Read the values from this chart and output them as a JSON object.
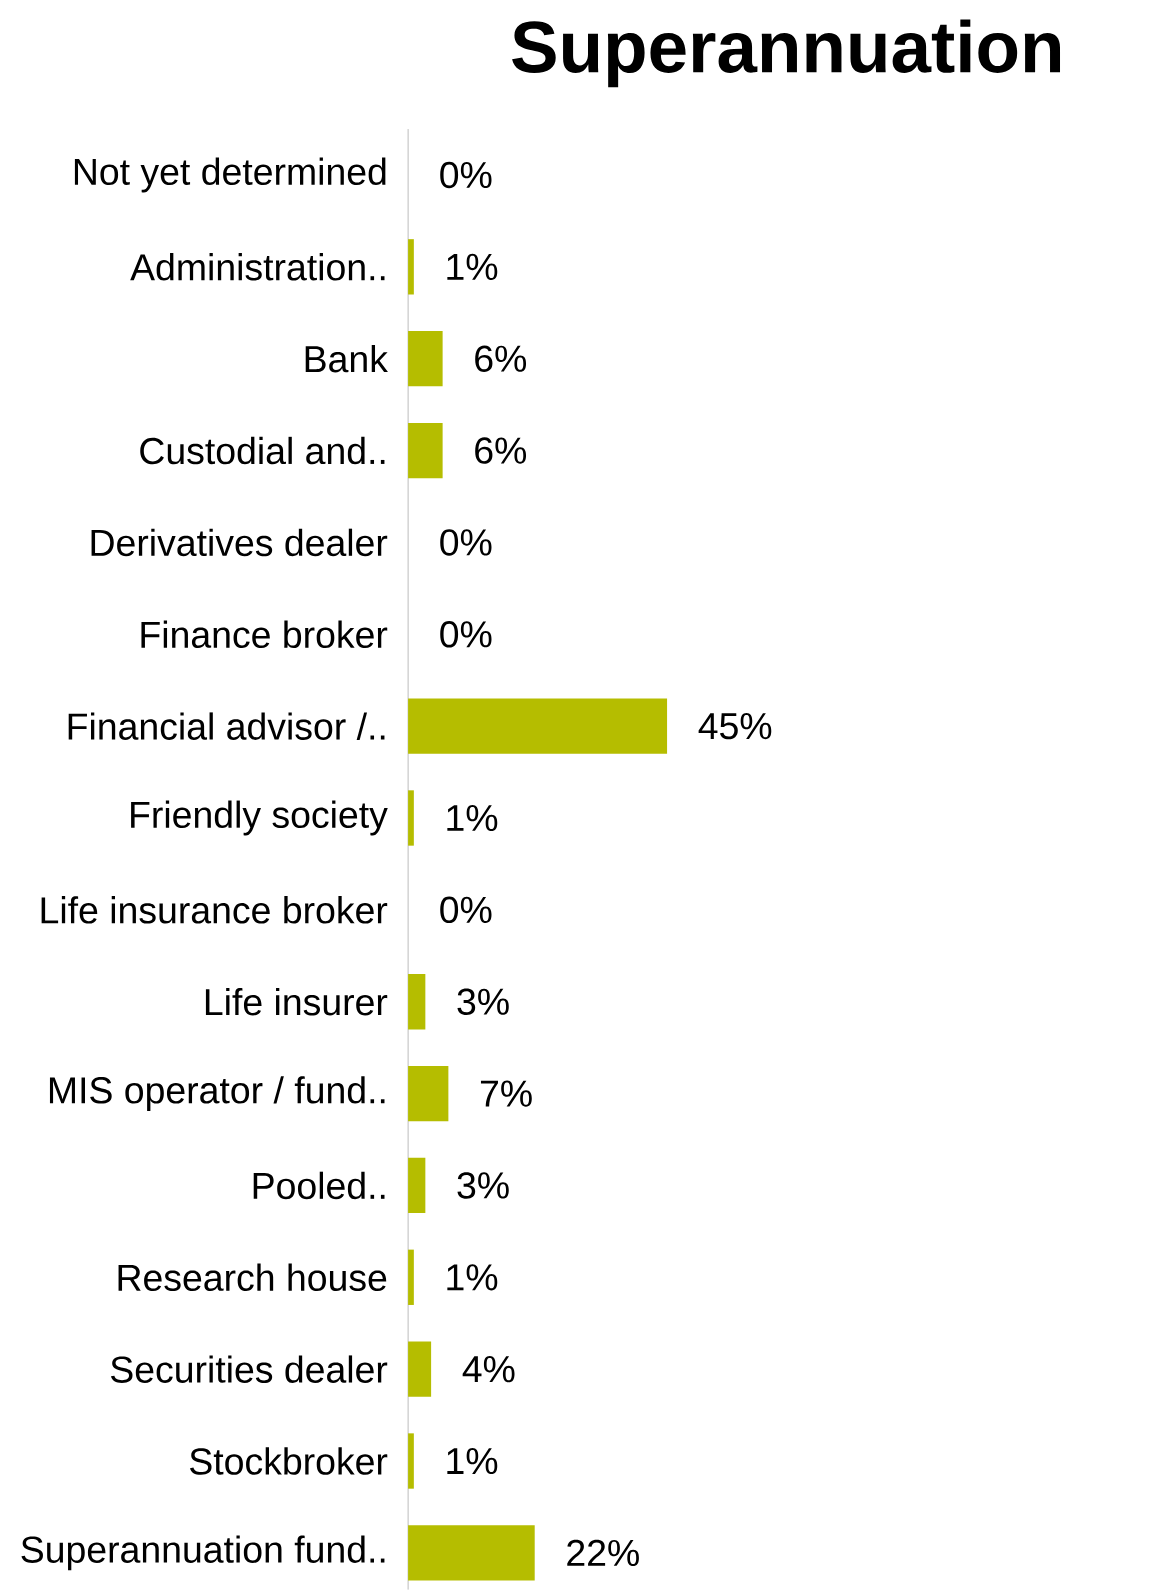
{
  "chart_data": {
    "type": "bar",
    "orientation": "horizontal",
    "title": "Superannuation",
    "color": "#b5bd00",
    "categories": [
      "Not yet determined",
      "Administration..",
      "Bank",
      "Custodial and..",
      "Derivatives dealer",
      "Finance broker",
      "Financial advisor /..",
      "Friendly society",
      "Life insurance broker",
      "Life insurer",
      "MIS operator / fund..",
      "Pooled..",
      "Research house",
      "Securities dealer",
      "Stockbroker",
      "Superannuation fund.."
    ],
    "values": [
      0,
      1,
      6,
      6,
      0,
      0,
      45,
      1,
      0,
      3,
      7,
      3,
      1,
      4,
      1,
      22
    ],
    "value_labels": [
      "0%",
      "1%",
      "6%",
      "6%",
      "0%",
      "0%",
      "45%",
      "1%",
      "0%",
      "3%",
      "7%",
      "3%",
      "1%",
      "4%",
      "1%",
      "22%"
    ]
  }
}
